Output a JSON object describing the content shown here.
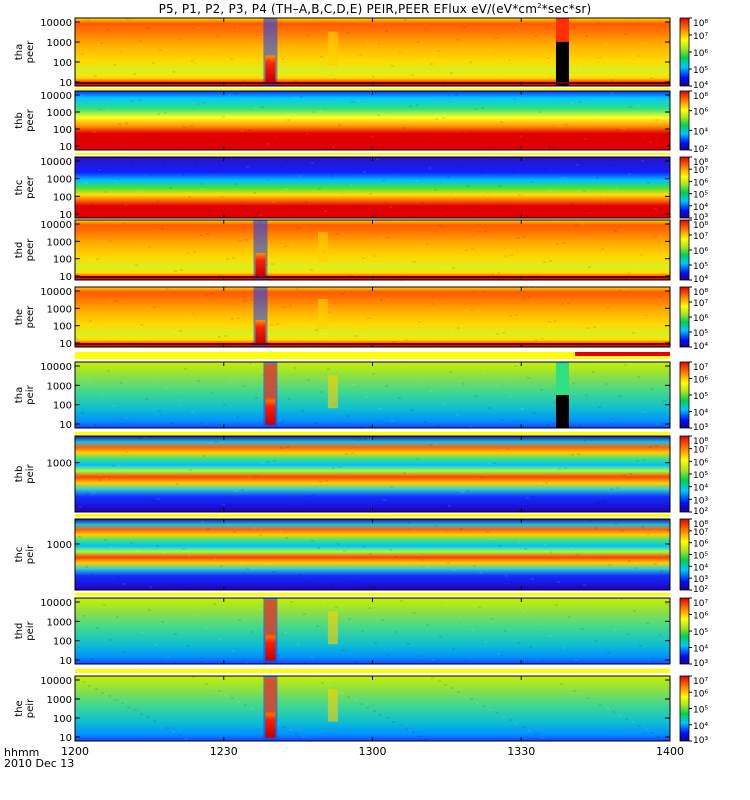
{
  "title": "P5, P1, P2, P3, P4 (TH–A,B,C,D,E) PEIR,PEER EFlux eV/(eV*cm",
  "title_sup": "2",
  "title_tail": "*sec*sr)",
  "time_axis": {
    "label": "hhmm",
    "date": "2010 Dec 13",
    "ticks": [
      "1200",
      "1230",
      "1300",
      "1330",
      "1400"
    ],
    "range": [
      "12:00",
      "14:00"
    ]
  },
  "colors": {
    "bar_yellow": "#ffff00",
    "bar_red": "#e00000"
  },
  "chart_data": [
    {
      "type": "heatmap",
      "probe": "tha",
      "species": "peer",
      "ylabel": [
        "tha",
        "peer"
      ],
      "yticks": [
        "10000",
        "1000",
        "100",
        "10"
      ],
      "ylim": [
        10,
        10000
      ],
      "cbar_ticks": [
        "10⁸",
        "10⁷",
        "10⁶",
        "10⁵",
        "10⁴"
      ],
      "cbar_range": [
        4,
        8
      ]
    },
    {
      "type": "heatmap",
      "probe": "thb",
      "species": "peer",
      "ylabel": [
        "thb",
        "peer"
      ],
      "yticks": [
        "10000",
        "1000",
        "100",
        "10"
      ],
      "ylim": [
        10,
        10000
      ],
      "cbar_ticks": [
        "10⁸",
        "10⁶",
        "10⁴",
        "10²"
      ],
      "cbar_range": [
        2,
        8
      ]
    },
    {
      "type": "heatmap",
      "probe": "thc",
      "species": "peer",
      "ylabel": [
        "thc",
        "peer"
      ],
      "yticks": [
        "10000",
        "1000",
        "100",
        "10"
      ],
      "ylim": [
        10,
        10000
      ],
      "cbar_ticks": [
        "10⁸",
        "10⁷",
        "10⁶",
        "10⁵",
        "10⁴",
        "10³"
      ],
      "cbar_range": [
        3,
        8
      ]
    },
    {
      "type": "heatmap",
      "probe": "thd",
      "species": "peer",
      "ylabel": [
        "thd",
        "peer"
      ],
      "yticks": [
        "10000",
        "1000",
        "100",
        "10"
      ],
      "ylim": [
        10,
        10000
      ],
      "cbar_ticks": [
        "10⁸",
        "10⁷",
        "10⁶",
        "10⁵",
        "10⁴"
      ],
      "cbar_range": [
        4,
        8
      ]
    },
    {
      "type": "heatmap",
      "probe": "the",
      "species": "peer",
      "ylabel": [
        "the",
        "peer"
      ],
      "yticks": [
        "10000",
        "1000",
        "100",
        "10"
      ],
      "ylim": [
        10,
        10000
      ],
      "cbar_ticks": [
        "10⁸",
        "10⁷",
        "10⁶",
        "10⁵",
        "10⁴"
      ],
      "cbar_range": [
        4,
        8
      ]
    },
    {
      "type": "heatmap",
      "probe": "tha",
      "species": "peir",
      "ylabel": [
        "tha",
        "peir"
      ],
      "yticks": [
        "10000",
        "1000",
        "100",
        "10"
      ],
      "ylim": [
        10,
        10000
      ],
      "cbar_ticks": [
        "10⁷",
        "10⁶",
        "10⁵",
        "10⁴",
        "10³"
      ],
      "cbar_range": [
        3,
        7
      ]
    },
    {
      "type": "heatmap",
      "probe": "thb",
      "species": "peir",
      "ylabel": [
        "thb",
        "peir"
      ],
      "yticks": [
        "1000"
      ],
      "ylim": [
        10,
        10000
      ],
      "cbar_ticks": [
        "10⁸",
        "10⁷",
        "10⁶",
        "10⁵",
        "10⁴",
        "10³",
        "10²"
      ],
      "cbar_range": [
        2,
        8
      ]
    },
    {
      "type": "heatmap",
      "probe": "thc",
      "species": "peir",
      "ylabel": [
        "thc",
        "peir"
      ],
      "yticks": [
        "1000"
      ],
      "ylim": [
        10,
        10000
      ],
      "cbar_ticks": [
        "10⁸",
        "10⁷",
        "10⁶",
        "10⁵",
        "10⁴",
        "10³",
        "10²"
      ],
      "cbar_range": [
        2,
        8
      ]
    },
    {
      "type": "heatmap",
      "probe": "thd",
      "species": "peir",
      "ylabel": [
        "thd",
        "peir"
      ],
      "yticks": [
        "10000",
        "1000",
        "100",
        "10"
      ],
      "ylim": [
        10,
        10000
      ],
      "cbar_ticks": [
        "10⁷",
        "10⁶",
        "10⁵",
        "10⁴",
        "10³"
      ],
      "cbar_range": [
        3,
        7
      ]
    },
    {
      "type": "heatmap",
      "probe": "the",
      "species": "peir",
      "ylabel": [
        "the",
        "peir"
      ],
      "yticks": [
        "10000",
        "1000",
        "100",
        "10"
      ],
      "ylim": [
        10,
        10000
      ],
      "cbar_ticks": [
        "10⁷",
        "10⁶",
        "10⁵",
        "10⁴",
        "10³"
      ],
      "cbar_range": [
        3,
        7
      ]
    }
  ]
}
